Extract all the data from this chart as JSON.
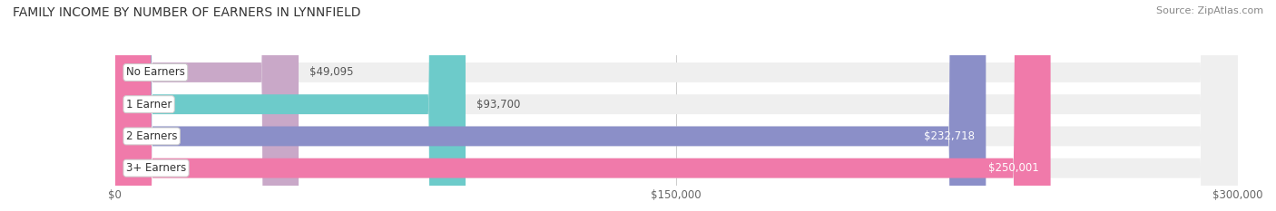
{
  "title": "FAMILY INCOME BY NUMBER OF EARNERS IN LYNNFIELD",
  "source": "Source: ZipAtlas.com",
  "categories": [
    "No Earners",
    "1 Earner",
    "2 Earners",
    "3+ Earners"
  ],
  "values": [
    49095,
    93700,
    232718,
    250001
  ],
  "bar_colors": [
    "#c9a8c8",
    "#6dcbca",
    "#8b8fc8",
    "#f07aaa"
  ],
  "bar_bg_color": "#efefef",
  "xlim": [
    0,
    300000
  ],
  "xticks": [
    0,
    150000,
    300000
  ],
  "xtick_labels": [
    "$0",
    "$150,000",
    "$300,000"
  ],
  "value_labels": [
    "$49,095",
    "$93,700",
    "$232,718",
    "$250,001"
  ],
  "background_color": "#ffffff",
  "bar_height": 0.62,
  "title_fontsize": 10,
  "source_fontsize": 8,
  "label_fontsize": 8.5,
  "tick_fontsize": 8.5
}
